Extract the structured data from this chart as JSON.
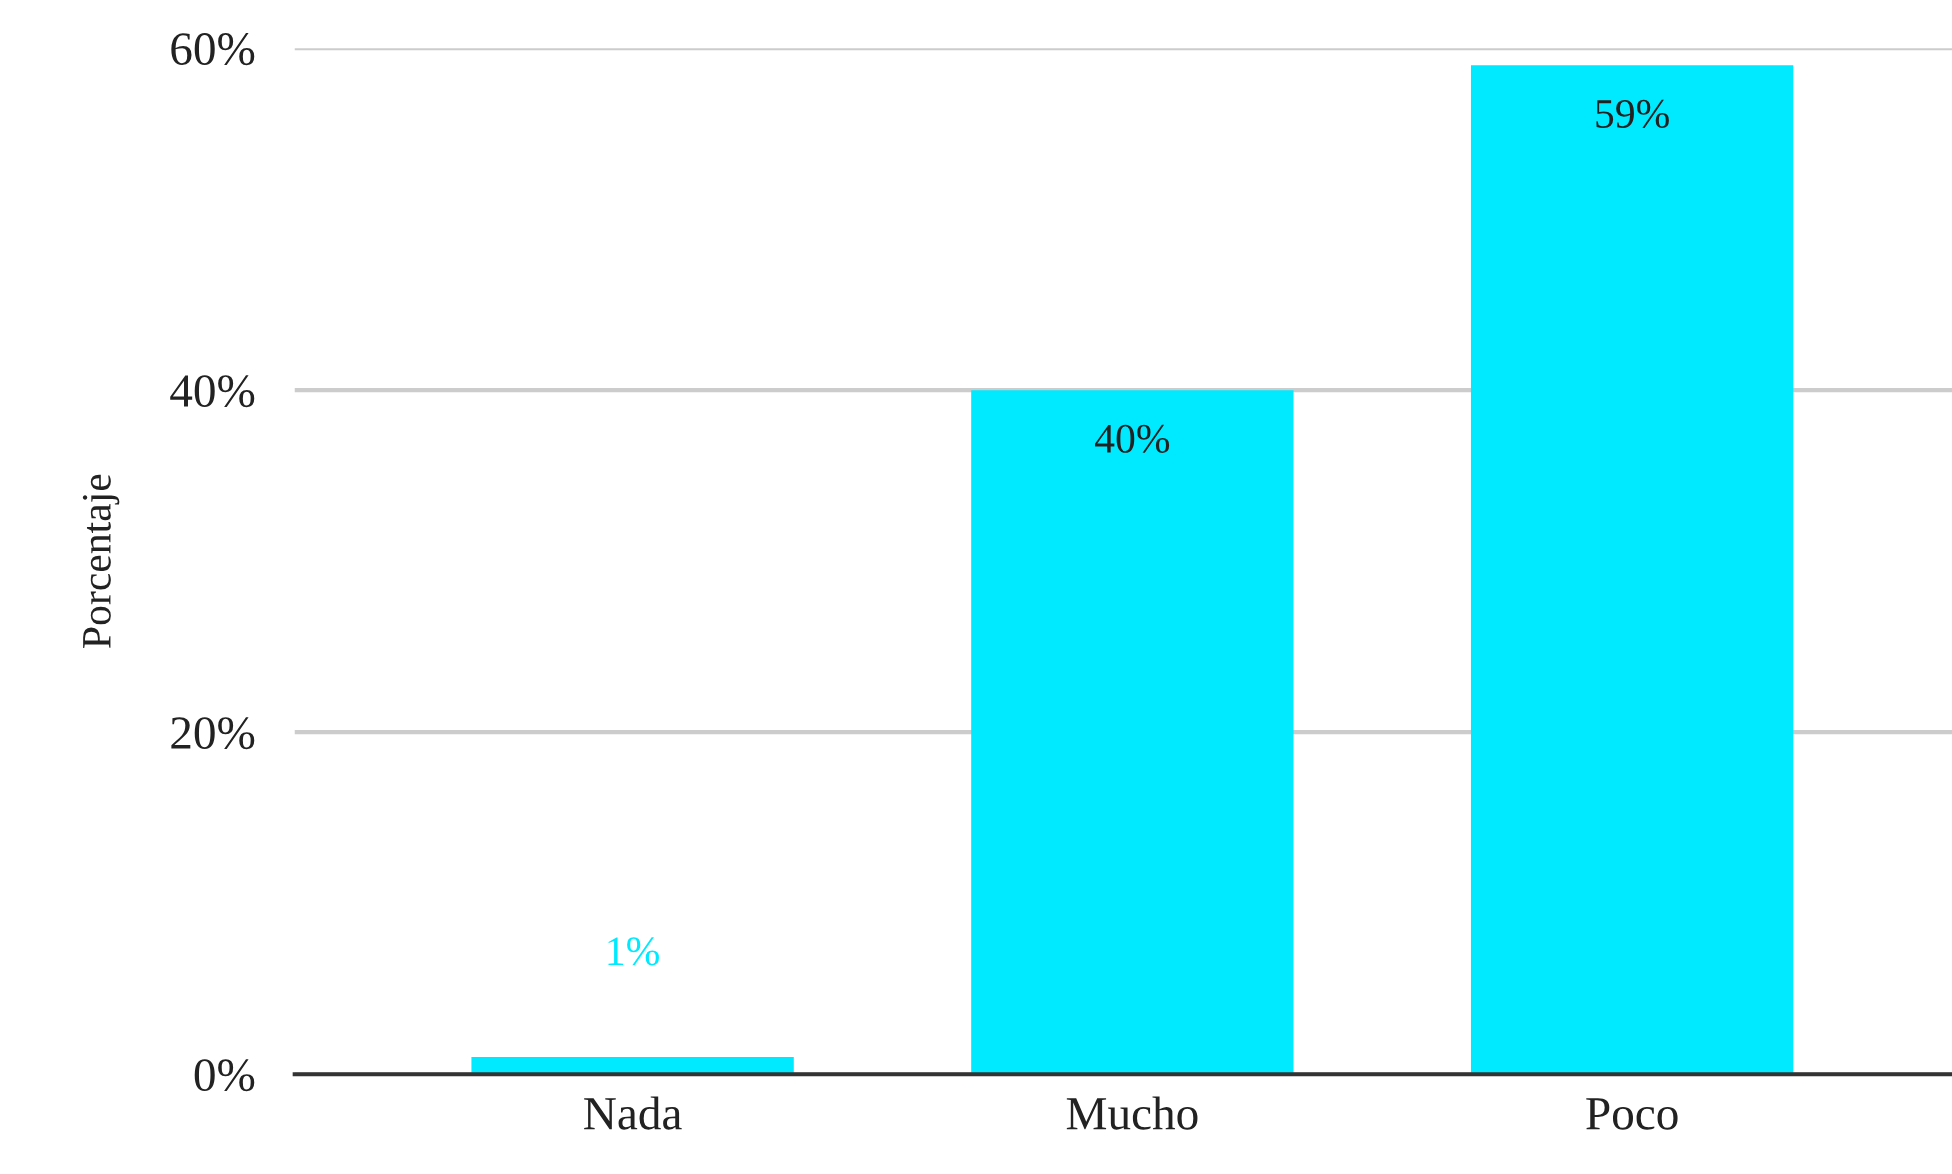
{
  "chart_data": {
    "type": "bar",
    "ylabel": "Porcentaje",
    "categories": [
      "Nada",
      "Mucho",
      "Poco"
    ],
    "values": [
      1,
      40,
      59
    ],
    "color": "#00eaff",
    "value_labels": [
      "1%",
      "40%",
      "59%"
    ],
    "ylim": [
      0,
      60
    ],
    "yticks": [
      {
        "value": 0,
        "label": "0%"
      },
      {
        "value": 20,
        "label": "20%"
      },
      {
        "value": 40,
        "label": "40%"
      },
      {
        "value": 60,
        "label": "60%"
      }
    ],
    "grid": "y",
    "legend": false
  }
}
